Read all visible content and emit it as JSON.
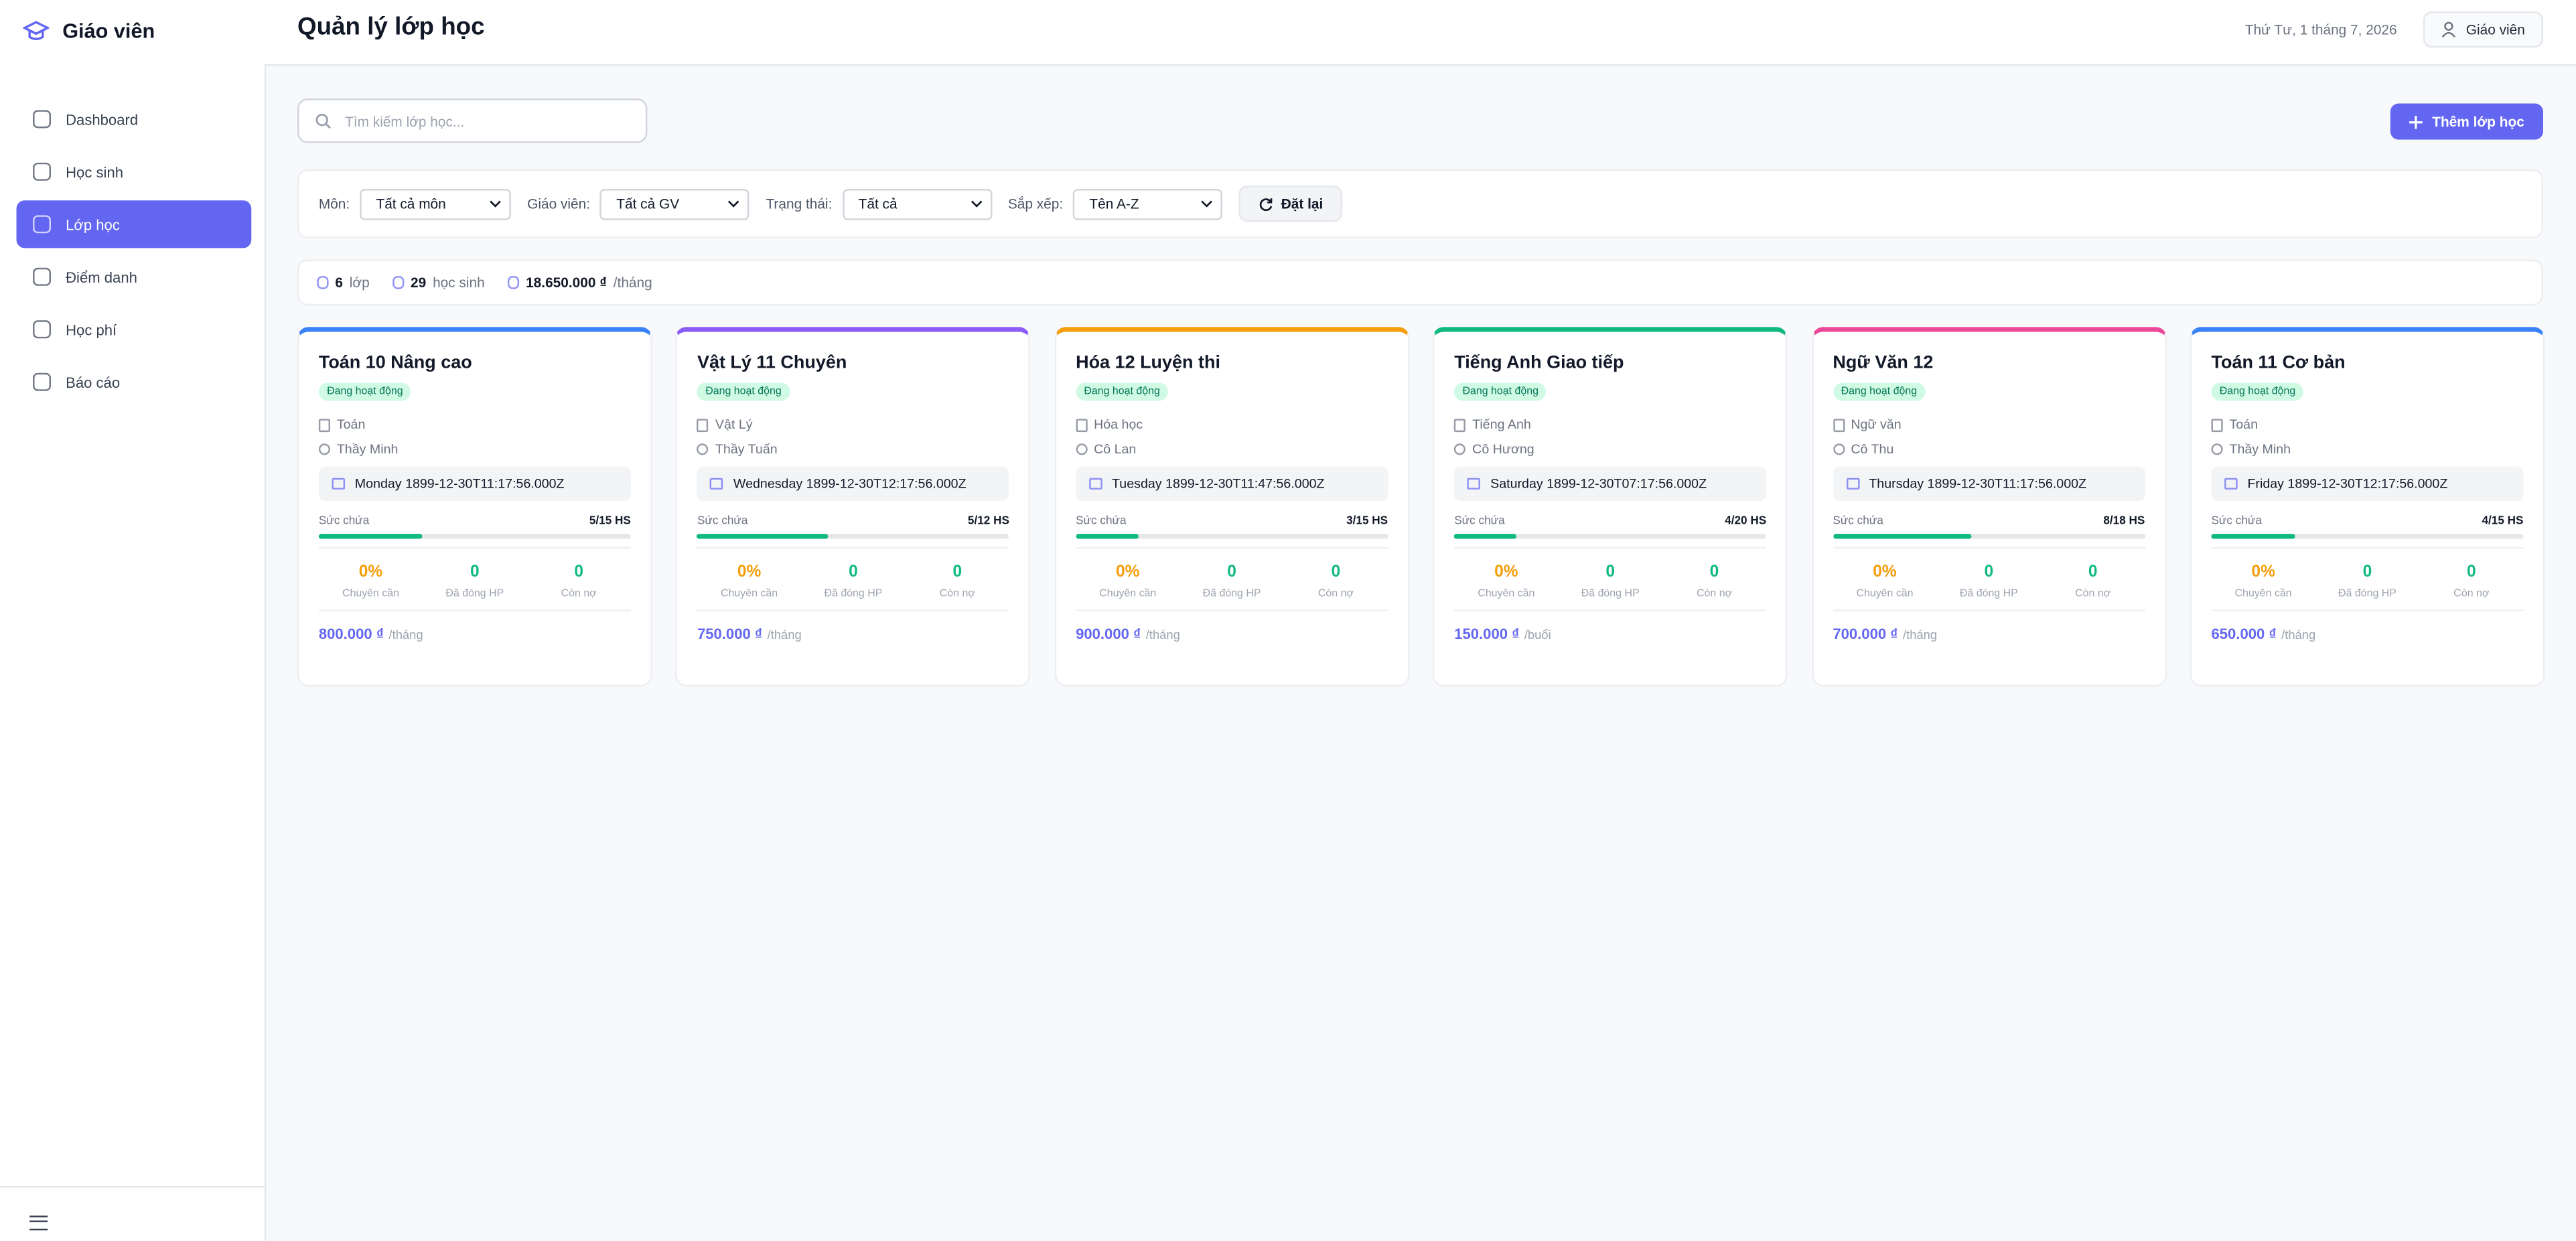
{
  "sidebar": {
    "brand": "Giáo viên",
    "nav": [
      "Dashboard",
      "Học sinh",
      "Lớp học",
      "Điểm danh",
      "Học phí",
      "Báo cáo"
    ],
    "active": 2
  },
  "header": {
    "title": "Quản lý lớp học",
    "date": "Thứ Tư, 1 tháng 7, 2026",
    "user": "Giáo viên"
  },
  "toolbar": {
    "search_placeholder": "Tìm kiếm lớp học...",
    "add_button": "Thêm lớp học"
  },
  "filters": {
    "items": [
      {
        "label": "Môn:",
        "value": "Tất cả môn"
      },
      {
        "label": "Giáo viên:",
        "value": "Tất cả GV"
      },
      {
        "label": "Trạng thái:",
        "value": "Tất cả"
      },
      {
        "label": "Sắp xếp:",
        "value": "Tên A-Z"
      }
    ],
    "reset": "Đặt lại"
  },
  "summary": [
    {
      "value": "6",
      "label": "lớp"
    },
    {
      "value": "29",
      "label": "học sinh"
    },
    {
      "value": "18.650.000 ₫",
      "label": "/tháng"
    }
  ],
  "cards": [
    {
      "name": "Toán 10 Nâng cao",
      "status": "Đang hoạt động",
      "subject": "Toán",
      "teacher": "Thầy Minh",
      "schedule": "Monday 1899-12-30T11:17:56.000Z",
      "capacity_label": "Sức chứa",
      "capacity": "5/15 HS",
      "stats": [
        {
          "value": "0%",
          "label": "Chuyên cần"
        },
        {
          "value": "0",
          "label": "Đã đóng HP"
        },
        {
          "value": "0",
          "label": "Còn nợ"
        }
      ],
      "fee": "800.000 ₫",
      "fee_unit": "/tháng",
      "color": "#3b82f6"
    },
    {
      "name": "Vật Lý 11 Chuyên",
      "status": "Đang hoạt động",
      "subject": "Vật Lý",
      "teacher": "Thầy Tuấn",
      "schedule": "Wednesday 1899-12-30T12:17:56.000Z",
      "capacity_label": "Sức chứa",
      "capacity": "5/12 HS",
      "stats": [
        {
          "value": "0%",
          "label": "Chuyên cần"
        },
        {
          "value": "0",
          "label": "Đã đóng HP"
        },
        {
          "value": "0",
          "label": "Còn nợ"
        }
      ],
      "fee": "750.000 ₫",
      "fee_unit": "/tháng",
      "color": "#8b5cf6"
    },
    {
      "name": "Hóa 12 Luyện thi",
      "status": "Đang hoạt động",
      "subject": "Hóa học",
      "teacher": "Cô Lan",
      "schedule": "Tuesday 1899-12-30T11:47:56.000Z",
      "capacity_label": "Sức chứa",
      "capacity": "3/15 HS",
      "stats": [
        {
          "value": "0%",
          "label": "Chuyên cần"
        },
        {
          "value": "0",
          "label": "Đã đóng HP"
        },
        {
          "value": "0",
          "label": "Còn nợ"
        }
      ],
      "fee": "900.000 ₫",
      "fee_unit": "/tháng",
      "color": "#f59e0b"
    },
    {
      "name": "Tiếng Anh Giao tiếp",
      "status": "Đang hoạt động",
      "subject": "Tiếng Anh",
      "teacher": "Cô Hương",
      "schedule": "Saturday 1899-12-30T07:17:56.000Z",
      "capacity_label": "Sức chứa",
      "capacity": "4/20 HS",
      "stats": [
        {
          "value": "0%",
          "label": "Chuyên cần"
        },
        {
          "value": "0",
          "label": "Đã đóng HP"
        },
        {
          "value": "0",
          "label": "Còn nợ"
        }
      ],
      "fee": "150.000 ₫",
      "fee_unit": "/buổi",
      "color": "#10b981"
    },
    {
      "name": "Ngữ Văn 12",
      "status": "Đang hoạt động",
      "subject": "Ngữ văn",
      "teacher": "Cô Thu",
      "schedule": "Thursday 1899-12-30T11:17:56.000Z",
      "capacity_label": "Sức chứa",
      "capacity": "8/18 HS",
      "stats": [
        {
          "value": "0%",
          "label": "Chuyên cần"
        },
        {
          "value": "0",
          "label": "Đã đóng HP"
        },
        {
          "value": "0",
          "label": "Còn nợ"
        }
      ],
      "fee": "700.000 ₫",
      "fee_unit": "/tháng",
      "color": "#ec4899"
    },
    {
      "name": "Toán 11 Cơ bản",
      "status": "Đang hoạt động",
      "subject": "Toán",
      "teacher": "Thầy Minh",
      "schedule": "Friday 1899-12-30T12:17:56.000Z",
      "capacity_label": "Sức chứa",
      "capacity": "4/15 HS",
      "stats": [
        {
          "value": "0%",
          "label": "Chuyên cần"
        },
        {
          "value": "0",
          "label": "Đã đóng HP"
        },
        {
          "value": "0",
          "label": "Còn nợ"
        }
      ],
      "fee": "650.000 ₫",
      "fee_unit": "/tháng",
      "color": "#3b82f6"
    }
  ]
}
